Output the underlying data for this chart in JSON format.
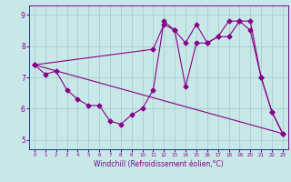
{
  "xlabel": "Windchill (Refroidissement éolien,°C)",
  "bg_color": "#c8e8e8",
  "line_color": "#880088",
  "grid_color": "#a0c8c8",
  "xlim": [
    -0.5,
    23.5
  ],
  "ylim": [
    4.7,
    9.3
  ],
  "xticks": [
    0,
    1,
    2,
    3,
    4,
    5,
    6,
    7,
    8,
    9,
    10,
    11,
    12,
    13,
    14,
    15,
    16,
    17,
    18,
    19,
    20,
    21,
    22,
    23
  ],
  "yticks": [
    5,
    6,
    7,
    8,
    9
  ],
  "series1_x": [
    0,
    1,
    2,
    3,
    4,
    5,
    6,
    7,
    8,
    9,
    10,
    11,
    12,
    13,
    14,
    15,
    16,
    17,
    18,
    19,
    20,
    21,
    22,
    23
  ],
  "series1_y": [
    7.4,
    7.1,
    7.2,
    6.6,
    6.3,
    6.1,
    6.1,
    5.6,
    5.5,
    5.8,
    6.0,
    6.6,
    8.8,
    8.5,
    6.7,
    8.1,
    8.1,
    8.3,
    8.3,
    8.8,
    8.5,
    7.0,
    5.9,
    5.2
  ],
  "series2_x": [
    0,
    11,
    12,
    13,
    14,
    15,
    16,
    17,
    18,
    19,
    20,
    21,
    22,
    23
  ],
  "series2_y": [
    7.4,
    7.9,
    8.7,
    8.5,
    8.1,
    8.7,
    8.1,
    8.3,
    8.8,
    8.8,
    8.8,
    7.0,
    5.9,
    5.2
  ],
  "series3_x": [
    0,
    23
  ],
  "series3_y": [
    7.4,
    5.2
  ],
  "marker": "D",
  "markersize": 2.5,
  "linewidth": 0.8
}
